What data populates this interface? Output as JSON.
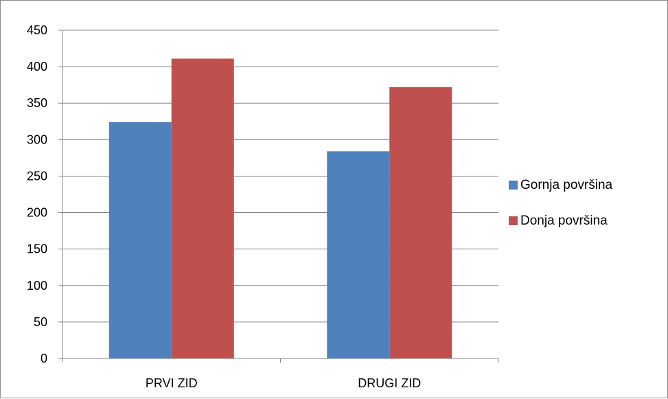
{
  "chart_data": {
    "type": "bar",
    "title": "",
    "xlabel": "",
    "ylabel": "",
    "categories": [
      "PRVI ZID",
      "DRUGI ZID"
    ],
    "series": [
      {
        "name": "Gornja površina",
        "values": [
          324,
          284
        ],
        "color": "#4f81bd"
      },
      {
        "name": "Donja površina",
        "values": [
          411,
          372
        ],
        "color": "#c0504d"
      }
    ],
    "ylim": [
      0,
      450
    ],
    "yticks": [
      "0",
      "50",
      "100",
      "150",
      "200",
      "250",
      "300",
      "350",
      "400",
      "450"
    ],
    "grid": true,
    "legend_position": "right"
  }
}
